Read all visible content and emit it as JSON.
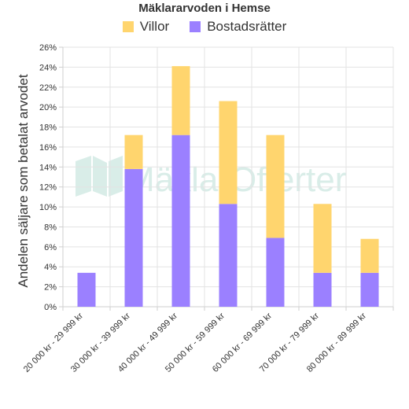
{
  "chart_data": {
    "type": "bar",
    "stacked": true,
    "title": "Mäklararvoden i Hemse",
    "ylabel": "Andelen säljare som betalat arvodet",
    "xlabel": "",
    "ylim": [
      0,
      26
    ],
    "y_tick_step": 2,
    "y_tick_suffix": "%",
    "grid": true,
    "legend_position": "top",
    "categories": [
      "20 000 kr - 29 999 kr",
      "30 000 kr - 39 999 kr",
      "40 000 kr - 49 999 kr",
      "50 000 kr - 59 999 kr",
      "60 000 kr - 69 999 kr",
      "70 000 kr - 79 999 kr",
      "80 000 kr - 89 999 kr"
    ],
    "series": [
      {
        "name": "Bostadsrätter",
        "color": "#9b80ff",
        "values": [
          3.4,
          13.8,
          17.2,
          10.3,
          6.9,
          3.4,
          3.4
        ]
      },
      {
        "name": "Villor",
        "color": "#ffd56e",
        "values": [
          0,
          3.4,
          6.9,
          10.3,
          10.3,
          6.9,
          3.4
        ]
      }
    ],
    "legend_order": [
      "Villor",
      "Bostadsrätter"
    ],
    "watermark": "MäklarOfferter"
  }
}
